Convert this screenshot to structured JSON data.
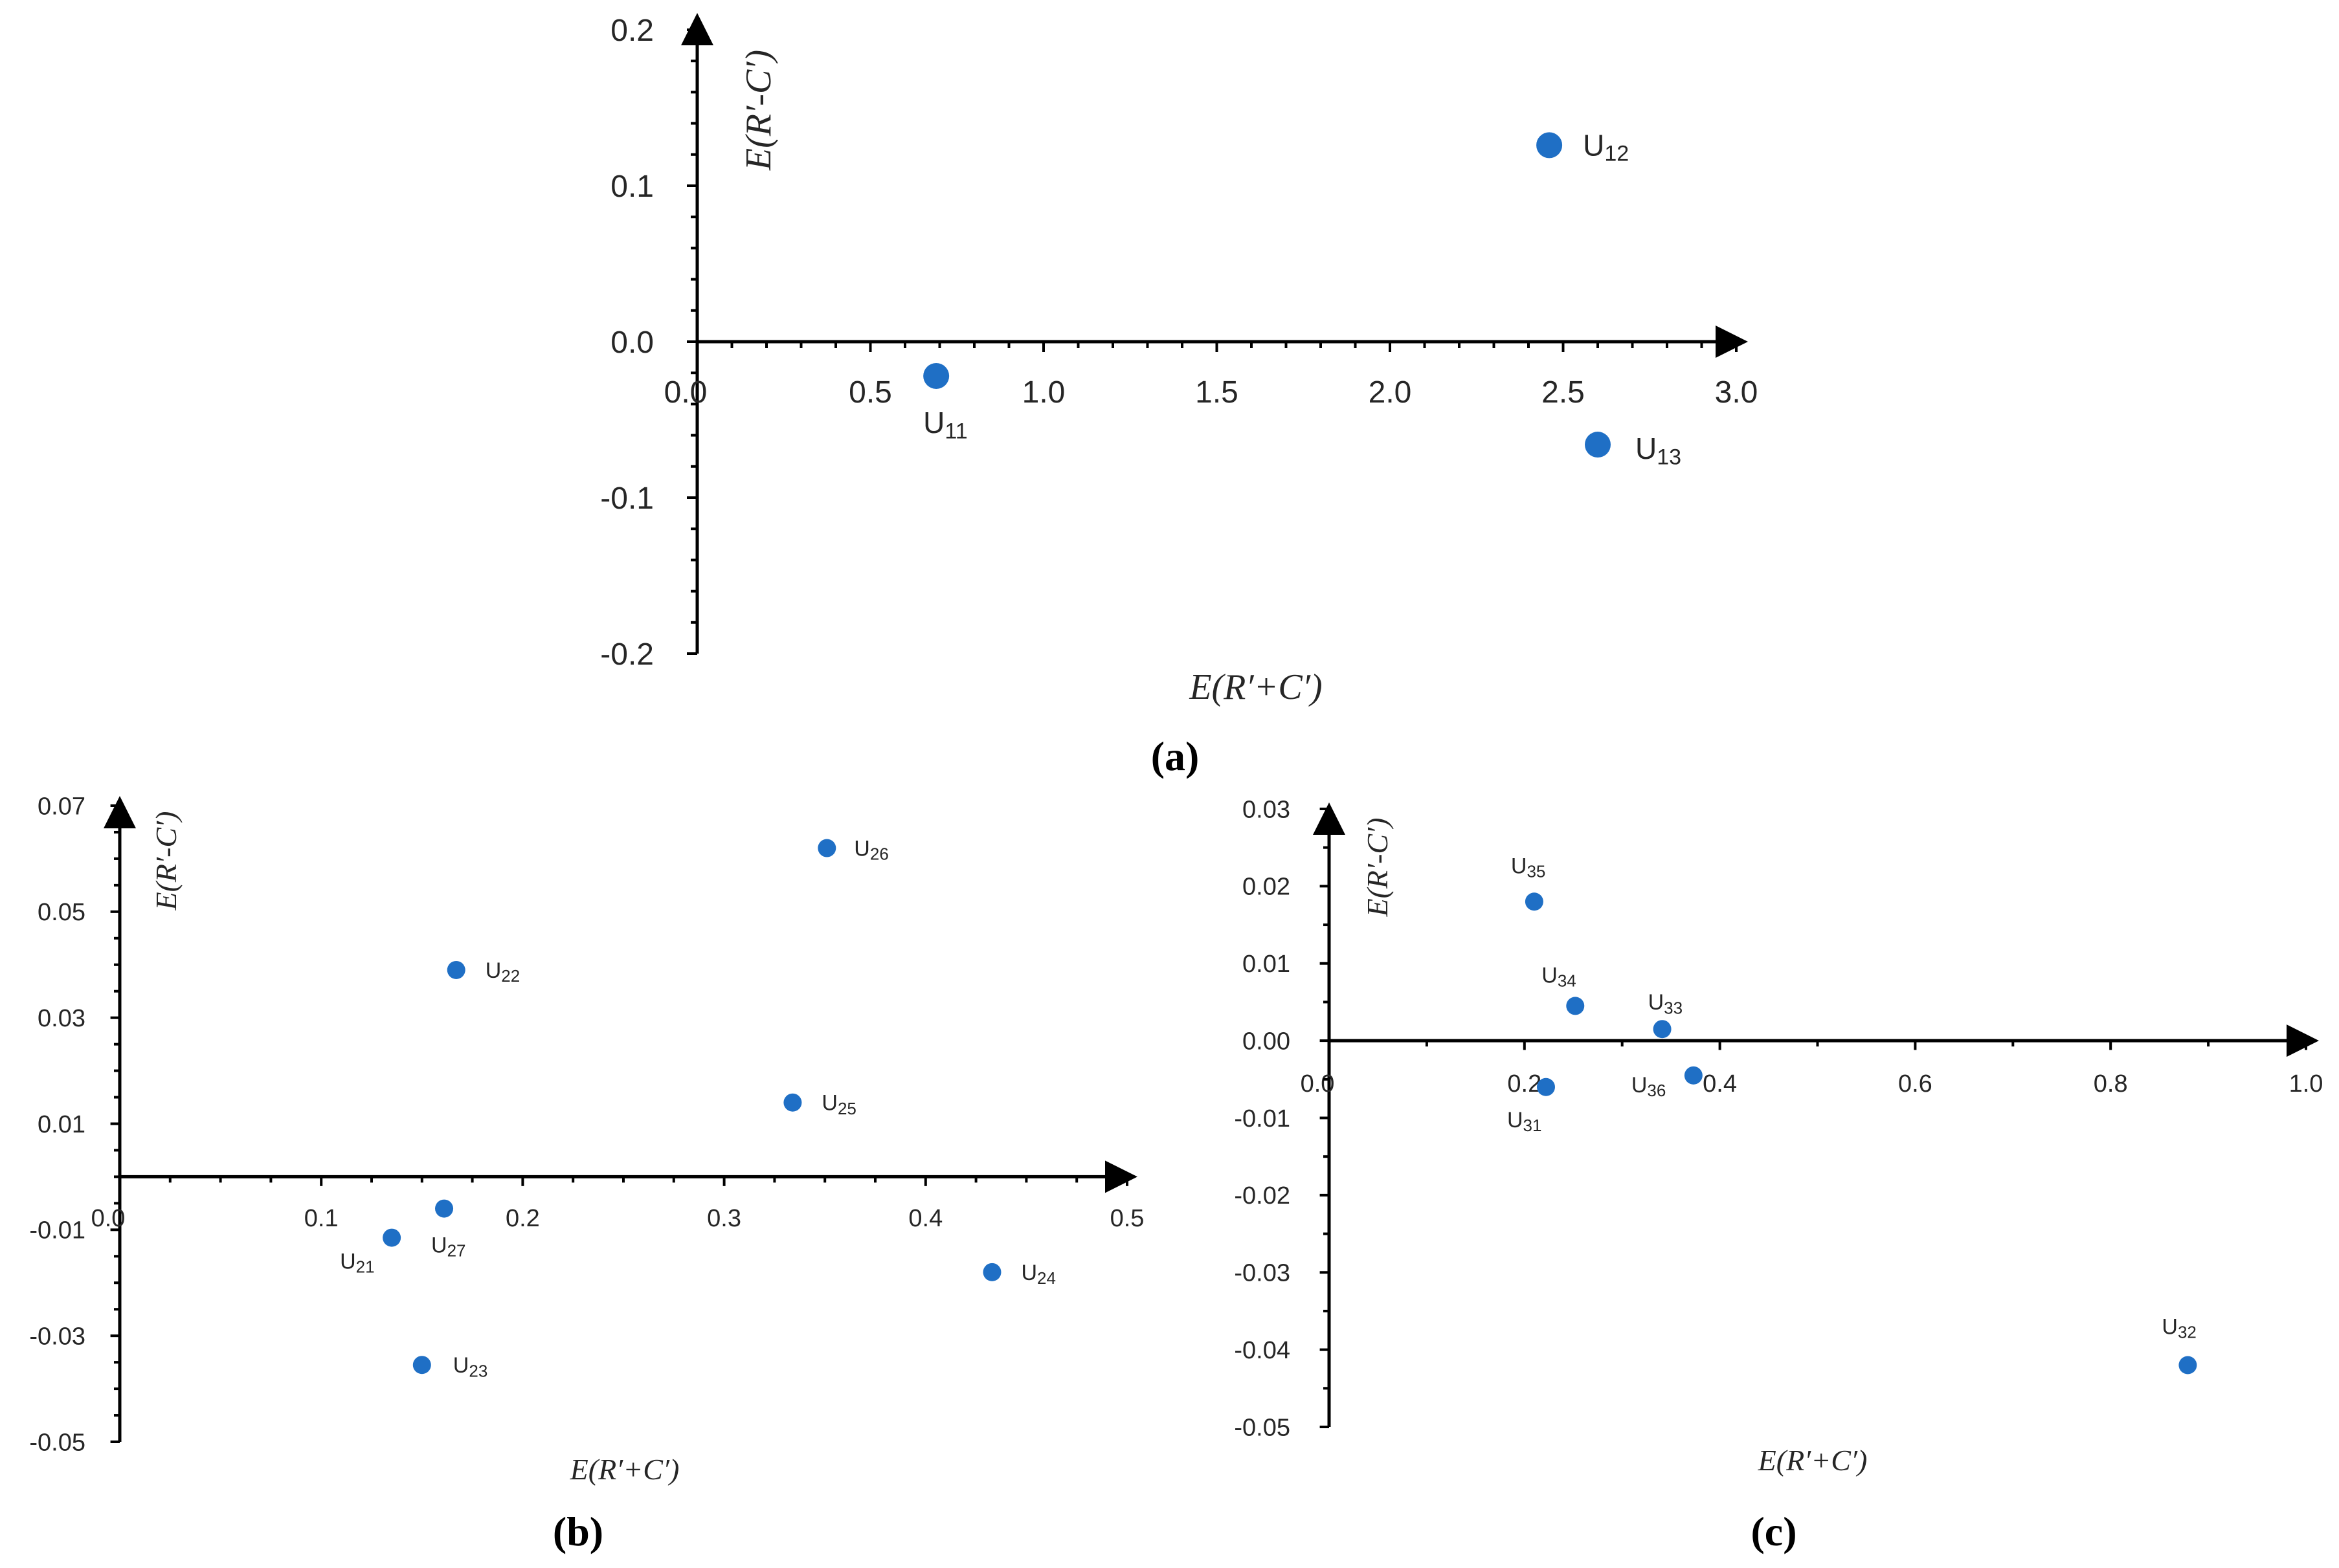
{
  "chart_data": [
    {
      "type": "scatter",
      "panel_label": "(a)",
      "xlabel": "E(R′+C′)",
      "ylabel": "E(R′-C′)",
      "xlim": [
        0,
        3.0
      ],
      "ylim": [
        -0.2,
        0.2
      ],
      "x_ticks": [
        "0.0",
        "0.5",
        "1.0",
        "1.5",
        "2.0",
        "2.5",
        "3.0"
      ],
      "y_ticks": [
        "0.2",
        "0.1",
        "0.0",
        "-0.1",
        "-0.2"
      ],
      "points": [
        {
          "base": "U",
          "sub": "11",
          "x": 0.69,
          "y": -0.022
        },
        {
          "base": "U",
          "sub": "12",
          "x": 2.46,
          "y": 0.126
        },
        {
          "base": "U",
          "sub": "13",
          "x": 2.6,
          "y": -0.066
        }
      ],
      "color": "#1f6fc5"
    },
    {
      "type": "scatter",
      "panel_label": "(b)",
      "xlabel": "E(R′+C′)",
      "ylabel": "E(R′-C′)",
      "xlim": [
        0,
        0.5
      ],
      "ylim": [
        -0.05,
        0.07
      ],
      "x_ticks": [
        "0.0",
        "0.1",
        "0.2",
        "0.3",
        "0.4",
        "0.5"
      ],
      "y_ticks": [
        "0.07",
        "0.05",
        "0.03",
        "0.01",
        "-0.01",
        "-0.03",
        "-0.05"
      ],
      "points": [
        {
          "base": "U",
          "sub": "21",
          "x": 0.135,
          "y": -0.0115
        },
        {
          "base": "U",
          "sub": "22",
          "x": 0.167,
          "y": 0.039
        },
        {
          "base": "U",
          "sub": "23",
          "x": 0.15,
          "y": -0.0355
        },
        {
          "base": "U",
          "sub": "24",
          "x": 0.433,
          "y": -0.018
        },
        {
          "base": "U",
          "sub": "25",
          "x": 0.334,
          "y": 0.014
        },
        {
          "base": "U",
          "sub": "26",
          "x": 0.351,
          "y": 0.062
        },
        {
          "base": "U",
          "sub": "27",
          "x": 0.161,
          "y": -0.006
        }
      ],
      "color": "#1f6fc5"
    },
    {
      "type": "scatter",
      "panel_label": "(c)",
      "xlabel": "E(R′+C′)",
      "ylabel": "E(R′-C′)",
      "xlim": [
        0,
        1.0
      ],
      "ylim": [
        -0.05,
        0.03
      ],
      "x_ticks": [
        "0.0",
        "0.2",
        "0.4",
        "0.6",
        "0.8",
        "1.0"
      ],
      "y_ticks": [
        "0.03",
        "0.02",
        "0.01",
        "0.00",
        "-0.01",
        "-0.02",
        "-0.03",
        "-0.04",
        "-0.05"
      ],
      "points": [
        {
          "base": "U",
          "sub": "31",
          "x": 0.222,
          "y": -0.006
        },
        {
          "base": "U",
          "sub": "32",
          "x": 0.879,
          "y": -0.042
        },
        {
          "base": "U",
          "sub": "33",
          "x": 0.341,
          "y": 0.0015
        },
        {
          "base": "U",
          "sub": "34",
          "x": 0.252,
          "y": 0.0045
        },
        {
          "base": "U",
          "sub": "35",
          "x": 0.21,
          "y": 0.018
        },
        {
          "base": "U",
          "sub": "36",
          "x": 0.373,
          "y": -0.0045
        }
      ],
      "color": "#1f6fc5"
    }
  ]
}
